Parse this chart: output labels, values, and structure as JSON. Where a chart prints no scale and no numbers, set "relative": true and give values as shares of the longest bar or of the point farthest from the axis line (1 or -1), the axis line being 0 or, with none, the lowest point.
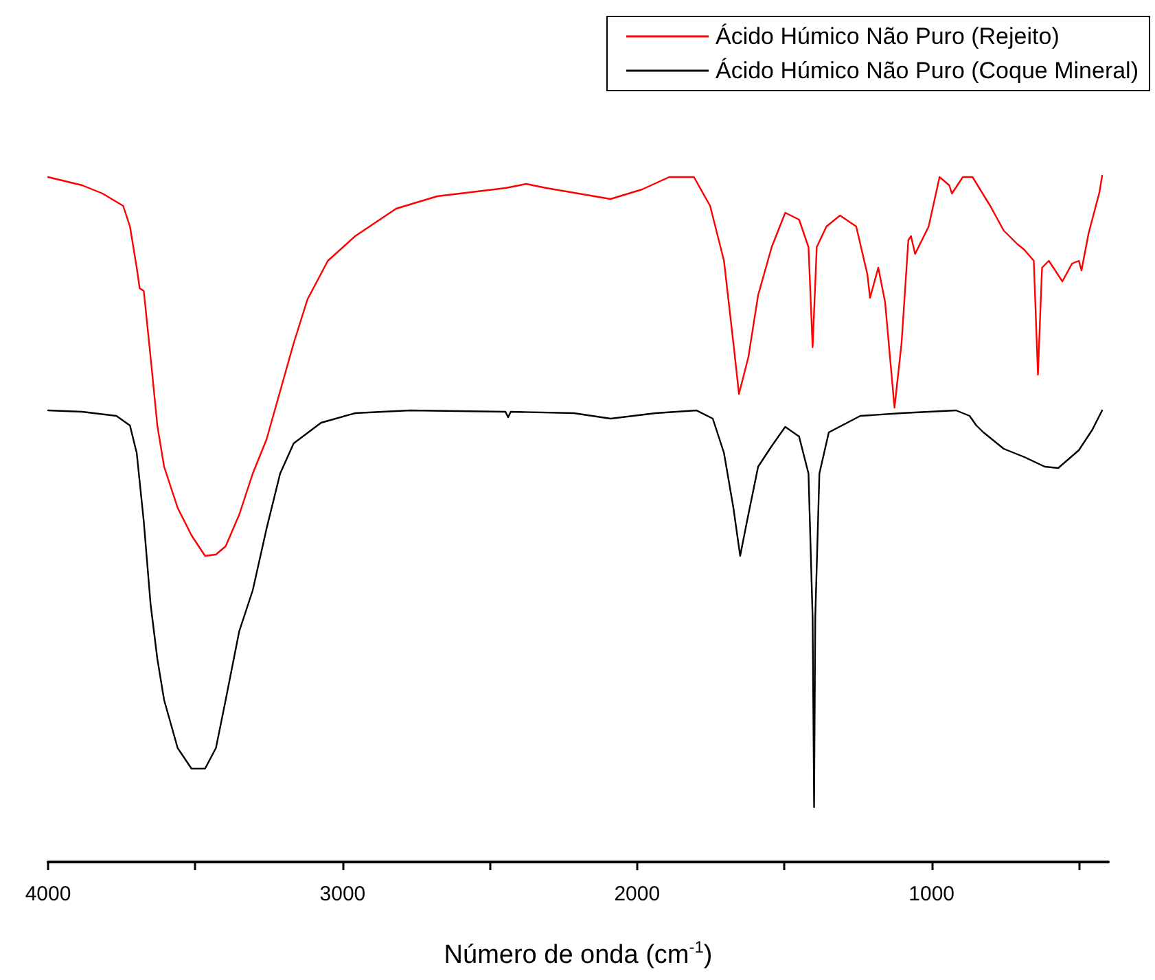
{
  "chart_data": {
    "type": "line",
    "relative": true,
    "xlabel": "Número de onda (cm$^{-1}$)",
    "xlim": [
      4000,
      400
    ],
    "xticks": [
      4000,
      {
        "value": 3500,
        "label": null
      },
      3000,
      {
        "value": 2500,
        "label": null
      },
      2000,
      {
        "value": 1500,
        "label": null
      },
      1000,
      {
        "value": 500,
        "label": null
      }
    ],
    "legend": "top right",
    "grid": false,
    "marker": "none",
    "line_style": "solid",
    "series": [
      {
        "name": "Ácido Húmico Não Puro (Rejeito)",
        "color": "#ff0000",
        "x": [
          4000,
          3884,
          3815,
          3745,
          3722,
          3699,
          3689,
          3675,
          3652,
          3629,
          3606,
          3560,
          3513,
          3467,
          3430,
          3397,
          3351,
          3305,
          3258,
          3212,
          3166,
          3119,
          3050,
          2957,
          2818,
          2679,
          2447,
          2377,
          2308,
          2090,
          1983,
          1891,
          1807,
          1752,
          1705,
          1673,
          1654,
          1622,
          1589,
          1543,
          1497,
          1450,
          1418,
          1404,
          1390,
          1357,
          1311,
          1256,
          1218,
          1209,
          1181,
          1158,
          1126,
          1102,
          1079,
          1070,
          1056,
          1033,
          1010,
          973,
          940,
          931,
          894,
          861,
          801,
          755,
          708,
          685,
          653,
          639,
          625,
          602,
          556,
          523,
          500,
          491,
          467,
          430,
          421
        ],
        "values": [
          0.998,
          0.986,
          0.974,
          0.956,
          0.926,
          0.866,
          0.836,
          0.832,
          0.736,
          0.636,
          0.576,
          0.516,
          0.476,
          0.446,
          0.448,
          0.46,
          0.506,
          0.566,
          0.616,
          0.686,
          0.756,
          0.82,
          0.876,
          0.912,
          0.952,
          0.97,
          0.982,
          0.988,
          0.982,
          0.966,
          0.98,
          0.998,
          0.998,
          0.956,
          0.876,
          0.756,
          0.682,
          0.736,
          0.826,
          0.896,
          0.946,
          0.936,
          0.896,
          0.75,
          0.896,
          0.926,
          0.942,
          0.926,
          0.856,
          0.822,
          0.866,
          0.816,
          0.662,
          0.756,
          0.906,
          0.912,
          0.886,
          0.906,
          0.926,
          0.998,
          0.986,
          0.974,
          0.998,
          0.998,
          0.956,
          0.92,
          0.9,
          0.892,
          0.876,
          0.71,
          0.866,
          0.876,
          0.846,
          0.872,
          0.876,
          0.862,
          0.916,
          0.976,
          1.0
        ]
      },
      {
        "name": "Ácido Húmico Não Puro (Coque Mineral)",
        "color": "#000000",
        "x": [
          4000,
          3884,
          3768,
          3722,
          3699,
          3675,
          3652,
          3629,
          3606,
          3560,
          3513,
          3467,
          3430,
          3397,
          3351,
          3305,
          3258,
          3212,
          3166,
          3073,
          2957,
          2771,
          2447,
          2438,
          2429,
          2215,
          2090,
          1937,
          1798,
          1743,
          1705,
          1673,
          1650,
          1627,
          1589,
          1543,
          1497,
          1450,
          1418,
          1404,
          1399,
          1395,
          1381,
          1349,
          1242,
          1102,
          917,
          871,
          848,
          824,
          755,
          685,
          616,
          570,
          500,
          454,
          421
        ],
        "values": [
          0.658,
          0.656,
          0.65,
          0.636,
          0.596,
          0.496,
          0.376,
          0.296,
          0.236,
          0.166,
          0.136,
          0.136,
          0.166,
          0.236,
          0.336,
          0.396,
          0.486,
          0.566,
          0.61,
          0.64,
          0.654,
          0.658,
          0.656,
          0.648,
          0.656,
          0.654,
          0.646,
          0.654,
          0.658,
          0.646,
          0.596,
          0.516,
          0.446,
          0.496,
          0.576,
          0.606,
          0.634,
          0.62,
          0.566,
          0.356,
          0.08,
          0.356,
          0.566,
          0.626,
          0.65,
          0.654,
          0.658,
          0.65,
          0.636,
          0.626,
          0.602,
          0.59,
          0.576,
          0.574,
          0.6,
          0.63,
          0.658
        ]
      }
    ]
  }
}
